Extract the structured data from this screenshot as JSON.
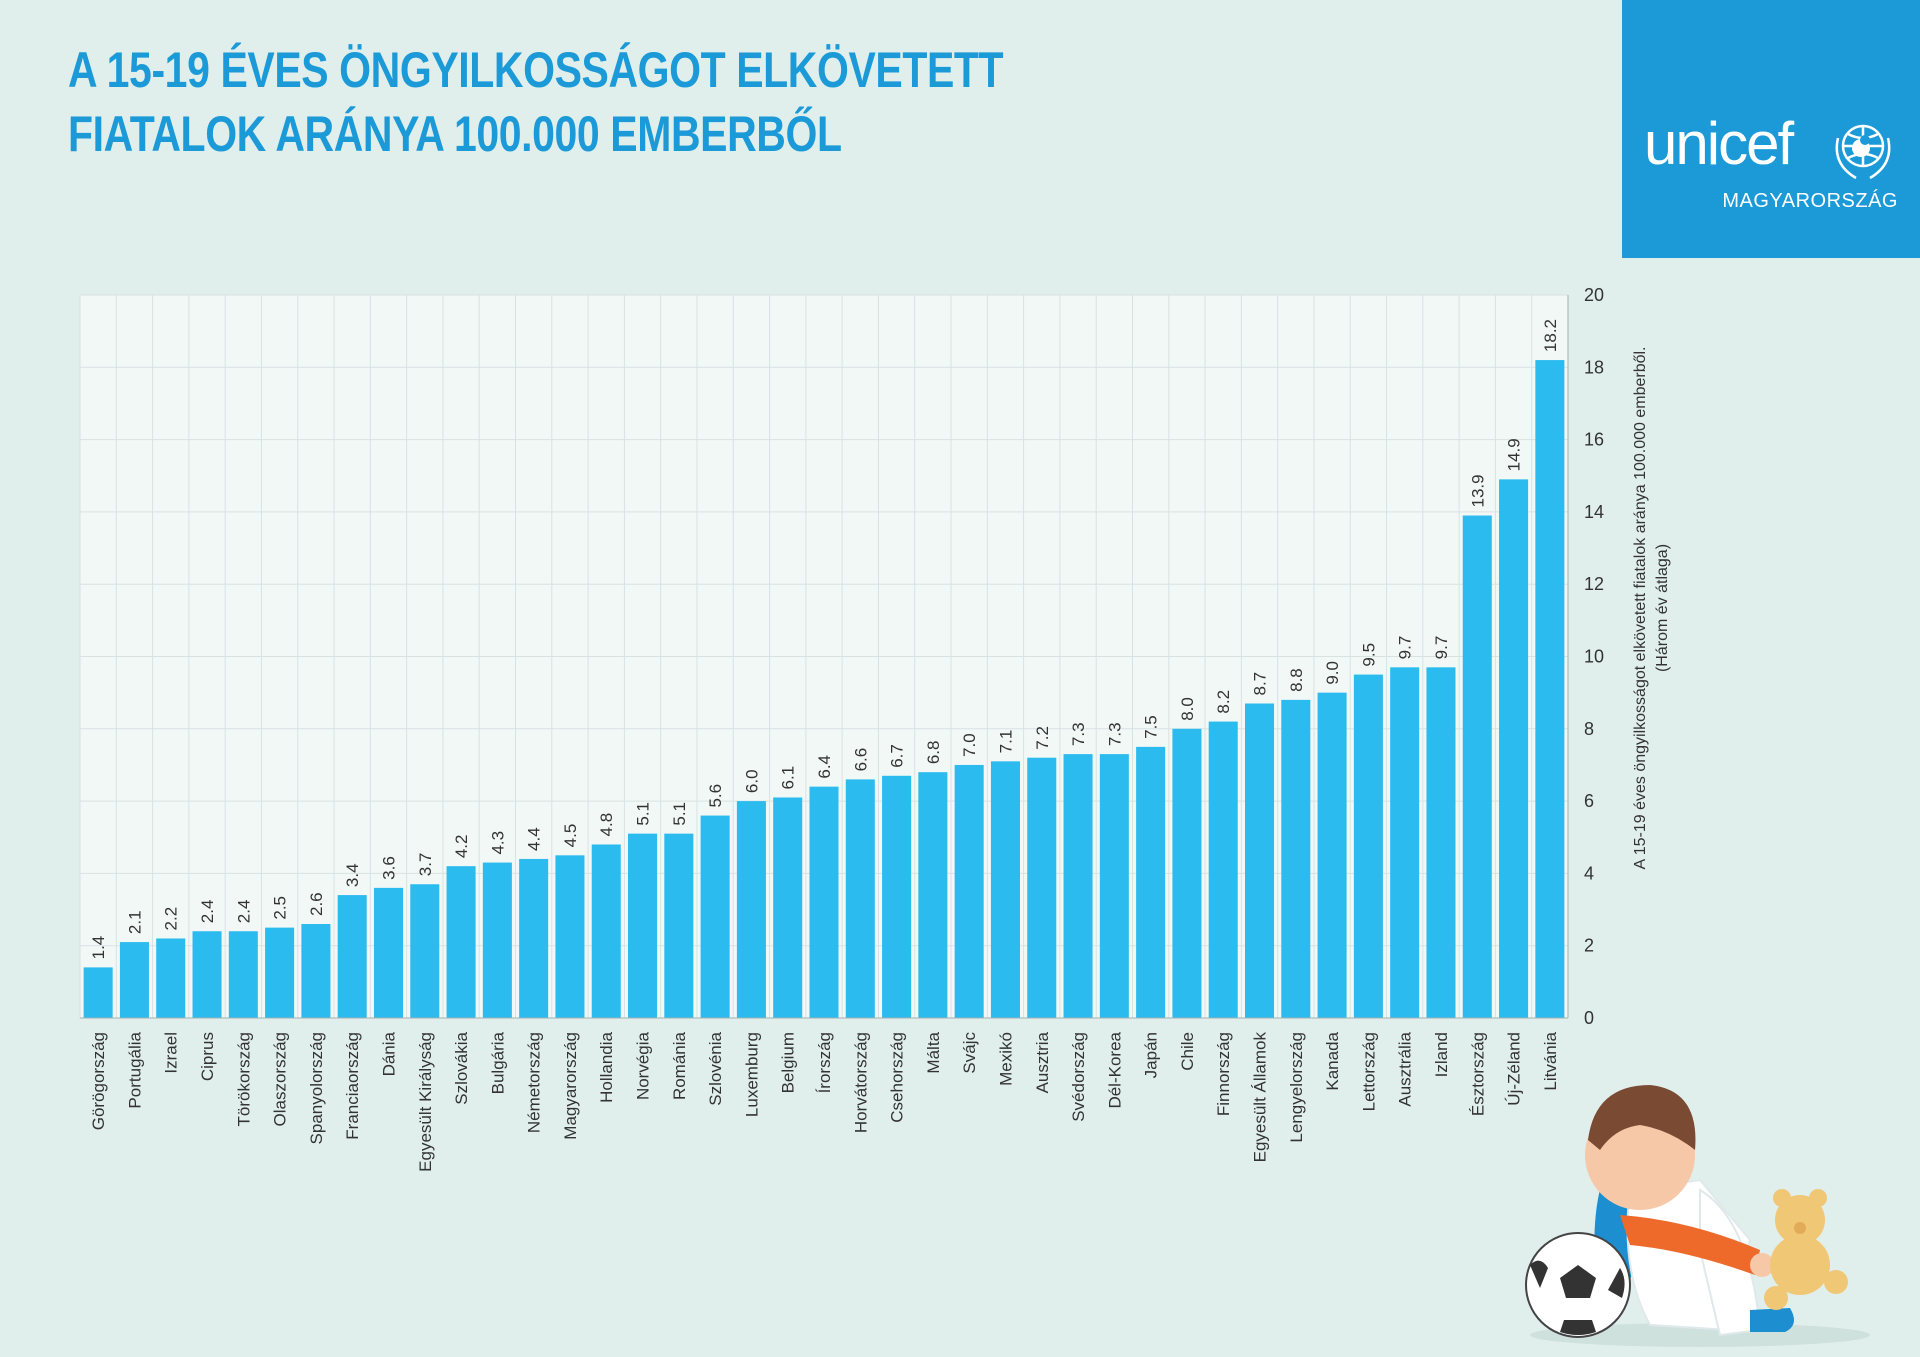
{
  "header": {
    "title_line1": "A 15-19 ÉVES ÖNGYILKOSSÁGOT ELKÖVETETT",
    "title_line2": "FIATALOK ARÁNYA 100.000 EMBERBŐL"
  },
  "logo": {
    "word": "unicef",
    "sub": "MAGYARORSZÁG",
    "icon": "unicef-emblem-icon",
    "bg_color": "#1c9ad8"
  },
  "illustration": {
    "icon": "sad-child-with-ball-and-teddy-illustration"
  },
  "chart_data": {
    "type": "bar",
    "title": "A 15-19 ÉVES ÖNGYILKOSSÁGOT ELKÖVETETT FIATALOK ARÁNYA 100.000 EMBERBŐL",
    "ylabel": "A 15-19 éves öngyilkosságot elkövetett fiatalok aránya 100.000 emberből.",
    "ylabel_sub": "(Három év átlaga)",
    "ylim": [
      0,
      20
    ],
    "yticks": [
      "0",
      "2",
      "4",
      "6",
      "8",
      "10",
      "12",
      "14",
      "16",
      "18",
      "20"
    ],
    "grid": true,
    "bar_color": "#2bbbef",
    "categories": [
      "Görögország",
      "Portugália",
      "Izrael",
      "Ciprus",
      "Törökország",
      "Olaszország",
      "Spanyolország",
      "Franciaország",
      "Dánia",
      "Egyesült Királyság",
      "Szlovákia",
      "Bulgária",
      "Németország",
      "Magyarország",
      "Hollandia",
      "Norvégia",
      "Románia",
      "Szlovénia",
      "Luxemburg",
      "Belgium",
      "Írország",
      "Horvátország",
      "Csehország",
      "Málta",
      "Svájc",
      "Mexikó",
      "Ausztria",
      "Svédország",
      "Dél-Korea",
      "Japán",
      "Chile",
      "Finnország",
      "Egyesült Államok",
      "Lengyelország",
      "Kanada",
      "Lettország",
      "Ausztrália",
      "Izland",
      "Észtország",
      "Új-Zéland",
      "Litvánia"
    ],
    "values": [
      1.4,
      2.1,
      2.2,
      2.4,
      2.4,
      2.5,
      2.6,
      3.4,
      3.6,
      3.7,
      4.2,
      4.3,
      4.4,
      4.5,
      4.8,
      5.1,
      5.1,
      5.6,
      6.0,
      6.1,
      6.4,
      6.6,
      6.7,
      6.8,
      7.0,
      7.1,
      7.2,
      7.3,
      7.3,
      7.5,
      8.0,
      8.2,
      8.7,
      8.8,
      9.0,
      9.5,
      9.7,
      9.7,
      13.9,
      14.9,
      18.2
    ],
    "value_labels": [
      "1.4",
      "2.1",
      "2.2",
      "2.4",
      "2.4",
      "2.5",
      "2.6",
      "3.4",
      "3.6",
      "3.7",
      "4.2",
      "4.3",
      "4.4",
      "4.5",
      "4.8",
      "5.1",
      "5.1",
      "5.6",
      "6.0",
      "6.1",
      "6.4",
      "6.6",
      "6.7",
      "6.8",
      "7.0",
      "7.1",
      "7.2",
      "7.3",
      "7.3",
      "7.5",
      "8.0",
      "8.2",
      "8.7",
      "8.8",
      "9.0",
      "9.5",
      "9.7",
      "9.7",
      "13.9",
      "14.9",
      "18.2"
    ]
  }
}
